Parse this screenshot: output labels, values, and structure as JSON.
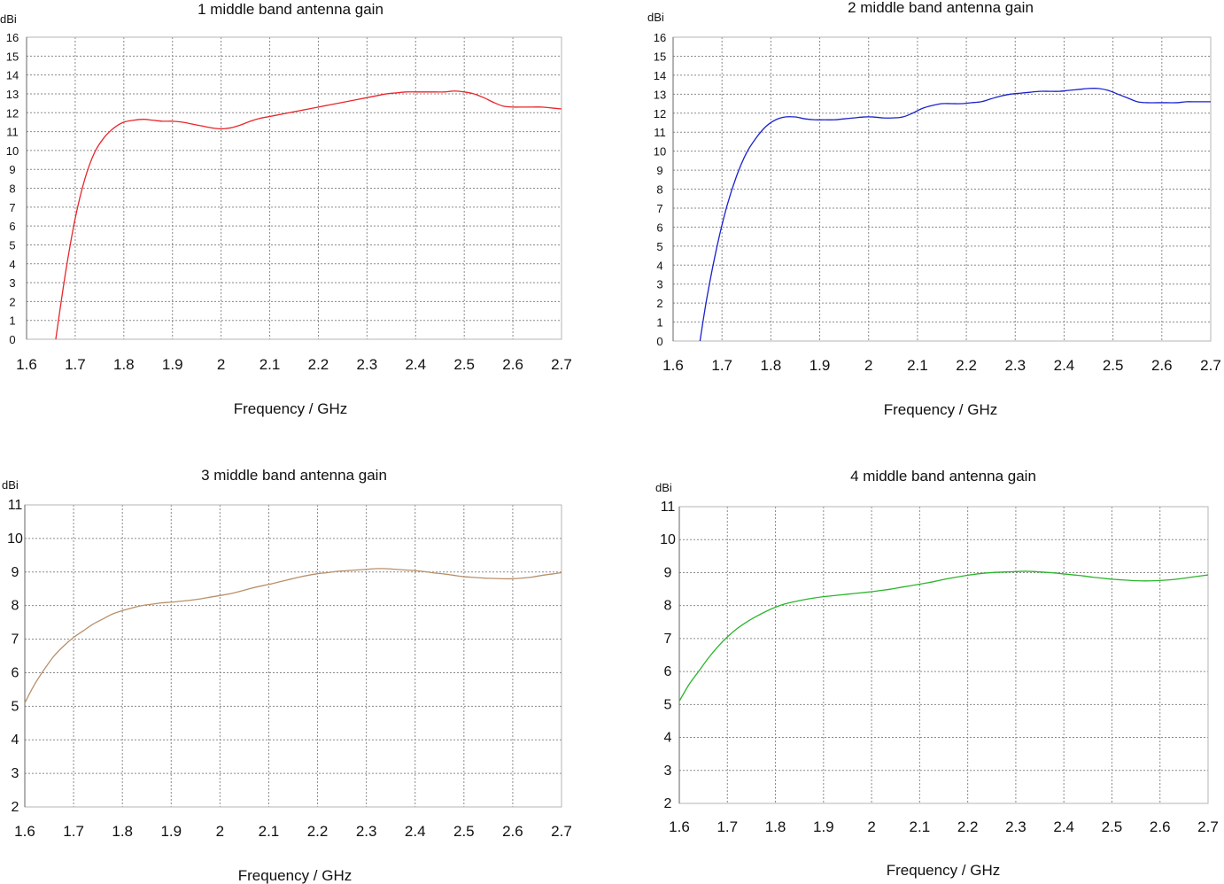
{
  "chart_data": [
    {
      "type": "line",
      "title": "1 middle band antenna gain",
      "unit": "dBi",
      "xlabel": "Frequency / GHz",
      "xlim": [
        1.6,
        2.7
      ],
      "ylim": [
        0,
        16
      ],
      "xticks": [
        "1.6",
        "1.7",
        "1.8",
        "1.9",
        "2",
        "2.1",
        "2.2",
        "2.3",
        "2.4",
        "2.5",
        "2.6",
        "2.7"
      ],
      "yticks": [
        "0",
        "1",
        "2",
        "3",
        "4",
        "5",
        "6",
        "7",
        "8",
        "9",
        "10",
        "11",
        "12",
        "13",
        "14",
        "15",
        "16"
      ],
      "grid": true,
      "color": "#e8262a",
      "series": [
        {
          "x": [
            1.66,
            1.68,
            1.7,
            1.72,
            1.74,
            1.76,
            1.78,
            1.8,
            1.82,
            1.84,
            1.86,
            1.88,
            1.9,
            1.92,
            1.94,
            1.96,
            1.98,
            2.0,
            2.02,
            2.04,
            2.06,
            2.08,
            2.1,
            2.12,
            2.14,
            2.16,
            2.18,
            2.2,
            2.22,
            2.24,
            2.26,
            2.28,
            2.3,
            2.32,
            2.34,
            2.36,
            2.38,
            2.4,
            2.42,
            2.44,
            2.46,
            2.48,
            2.5,
            2.52,
            2.54,
            2.56,
            2.58,
            2.6,
            2.62,
            2.64,
            2.66,
            2.68,
            2.7
          ],
          "y": [
            0,
            3.5,
            6.4,
            8.5,
            9.9,
            10.7,
            11.2,
            11.5,
            11.6,
            11.65,
            11.6,
            11.55,
            11.55,
            11.5,
            11.4,
            11.3,
            11.2,
            11.15,
            11.2,
            11.35,
            11.55,
            11.7,
            11.8,
            11.9,
            12.0,
            12.1,
            12.2,
            12.3,
            12.4,
            12.5,
            12.6,
            12.7,
            12.8,
            12.9,
            13.0,
            13.05,
            13.1,
            13.1,
            13.1,
            13.1,
            13.1,
            13.15,
            13.1,
            13.0,
            12.8,
            12.55,
            12.35,
            12.3,
            12.3,
            12.3,
            12.3,
            12.25,
            12.2
          ]
        }
      ]
    },
    {
      "type": "line",
      "title": "2 middle band antenna gain",
      "unit": "dBi",
      "xlabel": "Frequency / GHz",
      "xlim": [
        1.6,
        2.7
      ],
      "ylim": [
        0,
        16
      ],
      "xticks": [
        "1.6",
        "1.7",
        "1.8",
        "1.9",
        "2",
        "2.1",
        "2.2",
        "2.3",
        "2.4",
        "2.5",
        "2.6",
        "2.7"
      ],
      "yticks": [
        "0",
        "1",
        "2",
        "3",
        "4",
        "5",
        "6",
        "7",
        "8",
        "9",
        "10",
        "11",
        "12",
        "13",
        "14",
        "15",
        "16"
      ],
      "grid": true,
      "color": "#1a22cc",
      "series": [
        {
          "x": [
            1.655,
            1.67,
            1.69,
            1.71,
            1.73,
            1.75,
            1.77,
            1.79,
            1.81,
            1.83,
            1.85,
            1.87,
            1.89,
            1.91,
            1.93,
            1.95,
            1.97,
            1.99,
            2.01,
            2.03,
            2.05,
            2.07,
            2.09,
            2.11,
            2.13,
            2.15,
            2.17,
            2.19,
            2.21,
            2.23,
            2.25,
            2.27,
            2.29,
            2.31,
            2.33,
            2.35,
            2.37,
            2.39,
            2.41,
            2.43,
            2.45,
            2.47,
            2.49,
            2.51,
            2.53,
            2.55,
            2.57,
            2.59,
            2.61,
            2.63,
            2.65,
            2.67,
            2.7
          ],
          "y": [
            0,
            2.4,
            5.0,
            7.1,
            8.7,
            9.9,
            10.7,
            11.3,
            11.65,
            11.8,
            11.8,
            11.7,
            11.65,
            11.65,
            11.65,
            11.7,
            11.75,
            11.8,
            11.8,
            11.75,
            11.75,
            11.8,
            12.0,
            12.25,
            12.4,
            12.5,
            12.5,
            12.5,
            12.55,
            12.6,
            12.75,
            12.9,
            13.0,
            13.05,
            13.1,
            13.15,
            13.15,
            13.15,
            13.2,
            13.25,
            13.3,
            13.3,
            13.2,
            13.0,
            12.8,
            12.6,
            12.55,
            12.55,
            12.55,
            12.55,
            12.6,
            12.6,
            12.6
          ]
        }
      ]
    },
    {
      "type": "line",
      "title": "3 middle band antenna gain",
      "unit": "dBi",
      "xlabel": "Frequency / GHz",
      "xlim": [
        1.6,
        2.7
      ],
      "ylim": [
        2,
        11
      ],
      "xticks": [
        "1.6",
        "1.7",
        "1.8",
        "1.9",
        "2",
        "2.1",
        "2.2",
        "2.3",
        "2.4",
        "2.5",
        "2.6",
        "2.7"
      ],
      "yticks": [
        "2",
        "3",
        "4",
        "5",
        "6",
        "7",
        "8",
        "9",
        "10",
        "11"
      ],
      "grid": true,
      "color": "#b8906a",
      "series": [
        {
          "x": [
            1.6,
            1.62,
            1.64,
            1.66,
            1.68,
            1.7,
            1.72,
            1.74,
            1.76,
            1.78,
            1.8,
            1.82,
            1.84,
            1.86,
            1.88,
            1.9,
            1.92,
            1.94,
            1.96,
            1.98,
            2.0,
            2.02,
            2.04,
            2.06,
            2.08,
            2.1,
            2.12,
            2.14,
            2.16,
            2.18,
            2.2,
            2.22,
            2.24,
            2.26,
            2.28,
            2.3,
            2.32,
            2.34,
            2.36,
            2.38,
            2.4,
            2.42,
            2.44,
            2.46,
            2.48,
            2.5,
            2.52,
            2.54,
            2.56,
            2.58,
            2.6,
            2.62,
            2.64,
            2.66,
            2.68,
            2.7
          ],
          "y": [
            5.1,
            5.65,
            6.1,
            6.5,
            6.8,
            7.05,
            7.25,
            7.45,
            7.6,
            7.75,
            7.85,
            7.93,
            8.0,
            8.04,
            8.08,
            8.1,
            8.13,
            8.16,
            8.2,
            8.25,
            8.3,
            8.35,
            8.42,
            8.5,
            8.57,
            8.63,
            8.7,
            8.77,
            8.84,
            8.9,
            8.95,
            8.98,
            9.02,
            9.04,
            9.06,
            9.08,
            9.1,
            9.1,
            9.08,
            9.06,
            9.04,
            9.01,
            8.97,
            8.94,
            8.9,
            8.86,
            8.84,
            8.82,
            8.81,
            8.8,
            8.8,
            8.82,
            8.85,
            8.9,
            8.94,
            8.98
          ]
        }
      ]
    },
    {
      "type": "line",
      "title": "4 middle band antenna gain",
      "unit": "dBi",
      "xlabel": "Frequency / GHz",
      "xlim": [
        1.6,
        2.7
      ],
      "ylim": [
        2,
        11
      ],
      "xticks": [
        "1.6",
        "1.7",
        "1.8",
        "1.9",
        "2",
        "2.1",
        "2.2",
        "2.3",
        "2.4",
        "2.5",
        "2.6",
        "2.7"
      ],
      "yticks": [
        "2",
        "3",
        "4",
        "5",
        "6",
        "7",
        "8",
        "9",
        "10",
        "11"
      ],
      "grid": true,
      "color": "#2ab52a",
      "series": [
        {
          "x": [
            1.6,
            1.62,
            1.64,
            1.66,
            1.68,
            1.7,
            1.72,
            1.74,
            1.76,
            1.78,
            1.8,
            1.82,
            1.84,
            1.86,
            1.88,
            1.9,
            1.92,
            1.94,
            1.96,
            1.98,
            2.0,
            2.02,
            2.04,
            2.06,
            2.08,
            2.1,
            2.12,
            2.14,
            2.16,
            2.18,
            2.2,
            2.22,
            2.24,
            2.26,
            2.28,
            2.3,
            2.32,
            2.34,
            2.36,
            2.38,
            2.4,
            2.42,
            2.44,
            2.46,
            2.48,
            2.5,
            2.52,
            2.54,
            2.56,
            2.58,
            2.6,
            2.62,
            2.64,
            2.66,
            2.68,
            2.7
          ],
          "y": [
            5.1,
            5.6,
            6.0,
            6.4,
            6.75,
            7.05,
            7.3,
            7.5,
            7.67,
            7.82,
            7.95,
            8.05,
            8.12,
            8.18,
            8.23,
            8.27,
            8.3,
            8.33,
            8.36,
            8.39,
            8.42,
            8.46,
            8.5,
            8.55,
            8.6,
            8.65,
            8.7,
            8.76,
            8.82,
            8.87,
            8.92,
            8.96,
            8.99,
            9.01,
            9.02,
            9.03,
            9.04,
            9.03,
            9.01,
            8.99,
            8.96,
            8.93,
            8.9,
            8.86,
            8.83,
            8.8,
            8.78,
            8.76,
            8.75,
            8.75,
            8.76,
            8.78,
            8.81,
            8.85,
            8.89,
            8.93
          ]
        }
      ]
    }
  ]
}
